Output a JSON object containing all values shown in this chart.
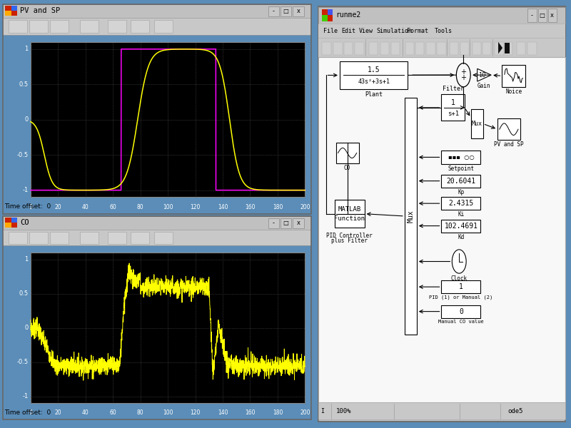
{
  "bg_color": "#5b8db8",
  "window_bg": "#c0c0c0",
  "plot_bg": "#000000",
  "yellow": "#ffff00",
  "magenta": "#ff00ff",
  "pv_sp_title": "PV and SP",
  "co_title": "CO",
  "runme_title": "runme2",
  "time_offset": "Time offset:  0",
  "kp_val": "20.6041",
  "kp_label": "Kp",
  "ki_val": "2.4315",
  "ki_label": "Ki",
  "kd_val": "102.4691",
  "kd_label": "Kd",
  "clock_label": "Clock",
  "pid_mode_val": "1",
  "pid_mode_label": "PID (1) or Manual (2)",
  "manual_co_val": "0",
  "manual_co_label": "Manual CO value",
  "status_zoom": "100%",
  "status_solver": "ode5",
  "menu_items": [
    "File",
    "Edit",
    "View",
    "Simulation",
    "Format",
    "Tools"
  ]
}
